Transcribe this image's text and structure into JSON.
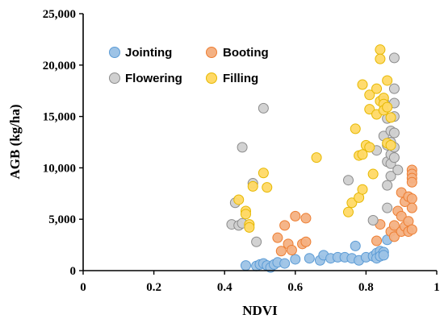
{
  "chart_data": {
    "type": "scatter",
    "xlabel": "NDVI",
    "ylabel": "AGB (kg/ha)",
    "xlim": [
      0,
      1
    ],
    "ylim": [
      0,
      25000
    ],
    "xticks": [
      0,
      0.2,
      0.4,
      0.6,
      0.8,
      1
    ],
    "xtick_labels": [
      "0",
      "0.2",
      "0.4",
      "0.6",
      "0.8",
      "1"
    ],
    "yticks": [
      0,
      5000,
      10000,
      15000,
      20000,
      25000
    ],
    "ytick_labels": [
      "0",
      "5,000",
      "10,000",
      "15,000",
      "20,000",
      "25,000"
    ],
    "grid": false,
    "legend": "top-left",
    "series": [
      {
        "name": "Jointing",
        "color": "#9DC3E6",
        "stroke": "#5B9BD5",
        "points": [
          [
            0.46,
            500
          ],
          [
            0.49,
            450
          ],
          [
            0.5,
            600
          ],
          [
            0.51,
            700
          ],
          [
            0.52,
            500
          ],
          [
            0.53,
            300
          ],
          [
            0.54,
            600
          ],
          [
            0.55,
            800
          ],
          [
            0.57,
            700
          ],
          [
            0.6,
            1100
          ],
          [
            0.64,
            1200
          ],
          [
            0.67,
            1000
          ],
          [
            0.68,
            1500
          ],
          [
            0.7,
            1200
          ],
          [
            0.72,
            1300
          ],
          [
            0.74,
            1300
          ],
          [
            0.76,
            1200
          ],
          [
            0.77,
            2400
          ],
          [
            0.78,
            1000
          ],
          [
            0.8,
            1300
          ],
          [
            0.82,
            1400
          ],
          [
            0.83,
            1700
          ],
          [
            0.83,
            1200
          ],
          [
            0.84,
            1900
          ],
          [
            0.84,
            1400
          ],
          [
            0.85,
            1800
          ],
          [
            0.85,
            1500
          ],
          [
            0.86,
            3000
          ]
        ]
      },
      {
        "name": "Booting",
        "color": "#F4B183",
        "stroke": "#ED7D31",
        "points": [
          [
            0.55,
            3200
          ],
          [
            0.56,
            1900
          ],
          [
            0.57,
            4400
          ],
          [
            0.58,
            2600
          ],
          [
            0.59,
            2000
          ],
          [
            0.6,
            5300
          ],
          [
            0.62,
            2600
          ],
          [
            0.63,
            5100
          ],
          [
            0.63,
            2800
          ],
          [
            0.83,
            2900
          ],
          [
            0.84,
            4500
          ],
          [
            0.87,
            3800
          ],
          [
            0.88,
            4400
          ],
          [
            0.88,
            3300
          ],
          [
            0.89,
            5800
          ],
          [
            0.9,
            7600
          ],
          [
            0.9,
            5300
          ],
          [
            0.9,
            3800
          ],
          [
            0.91,
            4300
          ],
          [
            0.91,
            6700
          ],
          [
            0.92,
            4800
          ],
          [
            0.92,
            3800
          ],
          [
            0.92,
            7200
          ],
          [
            0.93,
            9800
          ],
          [
            0.93,
            9400
          ],
          [
            0.93,
            9000
          ],
          [
            0.93,
            8600
          ],
          [
            0.93,
            7000
          ],
          [
            0.93,
            6100
          ],
          [
            0.93,
            4000
          ]
        ]
      },
      {
        "name": "Flowering",
        "color": "#D0D0D0",
        "stroke": "#8C8C8C",
        "points": [
          [
            0.42,
            4500
          ],
          [
            0.43,
            6600
          ],
          [
            0.44,
            4400
          ],
          [
            0.45,
            4600
          ],
          [
            0.45,
            12000
          ],
          [
            0.48,
            8500
          ],
          [
            0.49,
            2800
          ],
          [
            0.51,
            15800
          ],
          [
            0.75,
            8800
          ],
          [
            0.82,
            4900
          ],
          [
            0.83,
            11700
          ],
          [
            0.85,
            16500
          ],
          [
            0.85,
            13100
          ],
          [
            0.86,
            14800
          ],
          [
            0.86,
            12200
          ],
          [
            0.86,
            10600
          ],
          [
            0.86,
            8300
          ],
          [
            0.87,
            13600
          ],
          [
            0.87,
            12500
          ],
          [
            0.87,
            11300
          ],
          [
            0.87,
            10400
          ],
          [
            0.87,
            9200
          ],
          [
            0.88,
            20700
          ],
          [
            0.88,
            17700
          ],
          [
            0.88,
            16300
          ],
          [
            0.88,
            15000
          ],
          [
            0.88,
            13400
          ],
          [
            0.88,
            12000
          ],
          [
            0.88,
            11000
          ],
          [
            0.89,
            9800
          ],
          [
            0.86,
            6100
          ]
        ]
      },
      {
        "name": "Filling",
        "color": "#FFD966",
        "stroke": "#E6B800",
        "points": [
          [
            0.44,
            6900
          ],
          [
            0.46,
            5800
          ],
          [
            0.46,
            5500
          ],
          [
            0.47,
            4500
          ],
          [
            0.47,
            4200
          ],
          [
            0.48,
            8200
          ],
          [
            0.51,
            9500
          ],
          [
            0.52,
            8100
          ],
          [
            0.66,
            11000
          ],
          [
            0.75,
            5700
          ],
          [
            0.76,
            6600
          ],
          [
            0.77,
            13800
          ],
          [
            0.78,
            7100
          ],
          [
            0.78,
            11200
          ],
          [
            0.79,
            7900
          ],
          [
            0.79,
            11300
          ],
          [
            0.79,
            18100
          ],
          [
            0.8,
            12200
          ],
          [
            0.81,
            15700
          ],
          [
            0.81,
            12000
          ],
          [
            0.81,
            17100
          ],
          [
            0.82,
            9400
          ],
          [
            0.83,
            15200
          ],
          [
            0.83,
            17700
          ],
          [
            0.84,
            21500
          ],
          [
            0.84,
            20600
          ],
          [
            0.84,
            16500
          ],
          [
            0.85,
            16800
          ],
          [
            0.85,
            16200
          ],
          [
            0.85,
            15600
          ],
          [
            0.86,
            18500
          ],
          [
            0.86,
            15900
          ],
          [
            0.86,
            12400
          ],
          [
            0.87,
            14900
          ],
          [
            0.87,
            12200
          ]
        ]
      }
    ]
  }
}
